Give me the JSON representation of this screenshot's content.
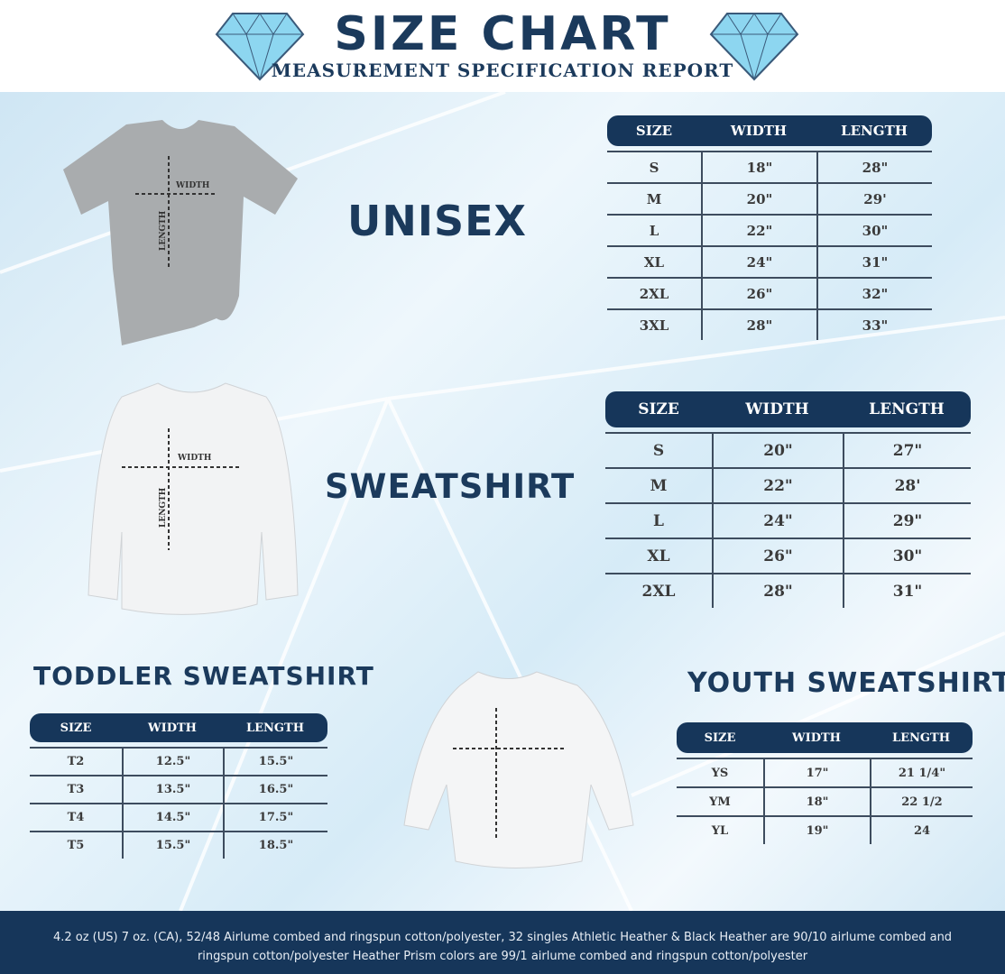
{
  "header": {
    "title": "SIZE CHART",
    "subtitle": "MEASUREMENT SPECIFICATION REPORT"
  },
  "colors": {
    "navy": "#16365a",
    "gem": "#7fd0ee"
  },
  "garment_labels": {
    "width": "WIDTH",
    "length": "LENGTH"
  },
  "unisex": {
    "title": "UNISEX",
    "columns": [
      "SIZE",
      "WIDTH",
      "LENGTH"
    ],
    "rows": [
      [
        "S",
        "18\"",
        "28\""
      ],
      [
        "M",
        "20\"",
        "29'"
      ],
      [
        "L",
        "22\"",
        "30\""
      ],
      [
        "XL",
        "24\"",
        "31\""
      ],
      [
        "2XL",
        "26\"",
        "32\""
      ],
      [
        "3XL",
        "28\"",
        "33\""
      ]
    ]
  },
  "sweatshirt": {
    "title": "SWEATSHIRT",
    "columns": [
      "SIZE",
      "WIDTH",
      "LENGTH"
    ],
    "rows": [
      [
        "S",
        "20\"",
        "27\""
      ],
      [
        "M",
        "22\"",
        "28'"
      ],
      [
        "L",
        "24\"",
        "29\""
      ],
      [
        "XL",
        "26\"",
        "30\""
      ],
      [
        "2XL",
        "28\"",
        "31\""
      ]
    ]
  },
  "toddler": {
    "title": "TODDLER SWEATSHIRT",
    "columns": [
      "SIZE",
      "WIDTH",
      "LENGTH"
    ],
    "rows": [
      [
        "T2",
        "12.5\"",
        "15.5\""
      ],
      [
        "T3",
        "13.5\"",
        "16.5\""
      ],
      [
        "T4",
        "14.5\"",
        "17.5\""
      ],
      [
        "T5",
        "15.5\"",
        "18.5\""
      ]
    ]
  },
  "youth": {
    "title": "YOUTH SWEATSHIRT",
    "columns": [
      "SIZE",
      "WIDTH",
      "LENGTH"
    ],
    "rows": [
      [
        "YS",
        "17\"",
        "21 1/4\""
      ],
      [
        "YM",
        "18\"",
        "22 1/2"
      ],
      [
        "YL",
        "19\"",
        "24"
      ]
    ]
  },
  "footer": {
    "text": "4.2 oz (US) 7 oz. (CA), 52/48 Airlume combed and ringspun cotton/polyester, 32 singles Athletic Heather & Black Heather are 90/10 airlume combed and ringspun cotton/polyester Heather Prism colors are 99/1 airlume combed and ringspun cotton/polyester"
  }
}
